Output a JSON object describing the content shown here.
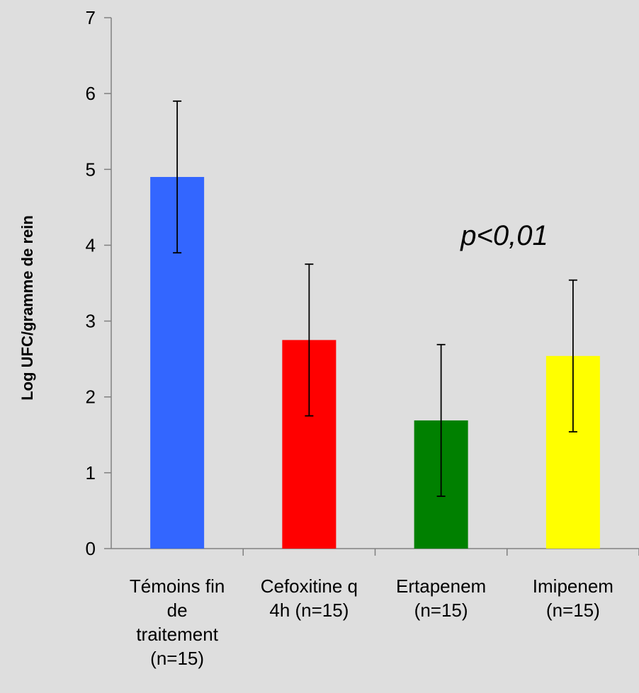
{
  "chart_data": {
    "type": "bar",
    "categories": [
      [
        "Témoins fin",
        "de",
        "traitement",
        "(n=15)"
      ],
      [
        "Cefoxitine q",
        "4h (n=15)"
      ],
      [
        "Ertapenem",
        "(n=15)"
      ],
      [
        "Imipenem",
        "(n=15)"
      ]
    ],
    "values": [
      4.9,
      2.75,
      1.69,
      2.54
    ],
    "error": [
      1.0,
      1.0,
      1.0,
      1.0
    ],
    "colors": [
      "#3366ff",
      "#ff0000",
      "#008000",
      "#ffff00"
    ],
    "ylabel": "Log UFC/gramme de rein",
    "xlabel": "",
    "title": "",
    "ylim": [
      0,
      7
    ],
    "yticks": [
      "0",
      "1",
      "2",
      "3",
      "4",
      "5",
      "6",
      "7"
    ],
    "annotation": "p<0,01",
    "grid": false,
    "legend": "none"
  }
}
